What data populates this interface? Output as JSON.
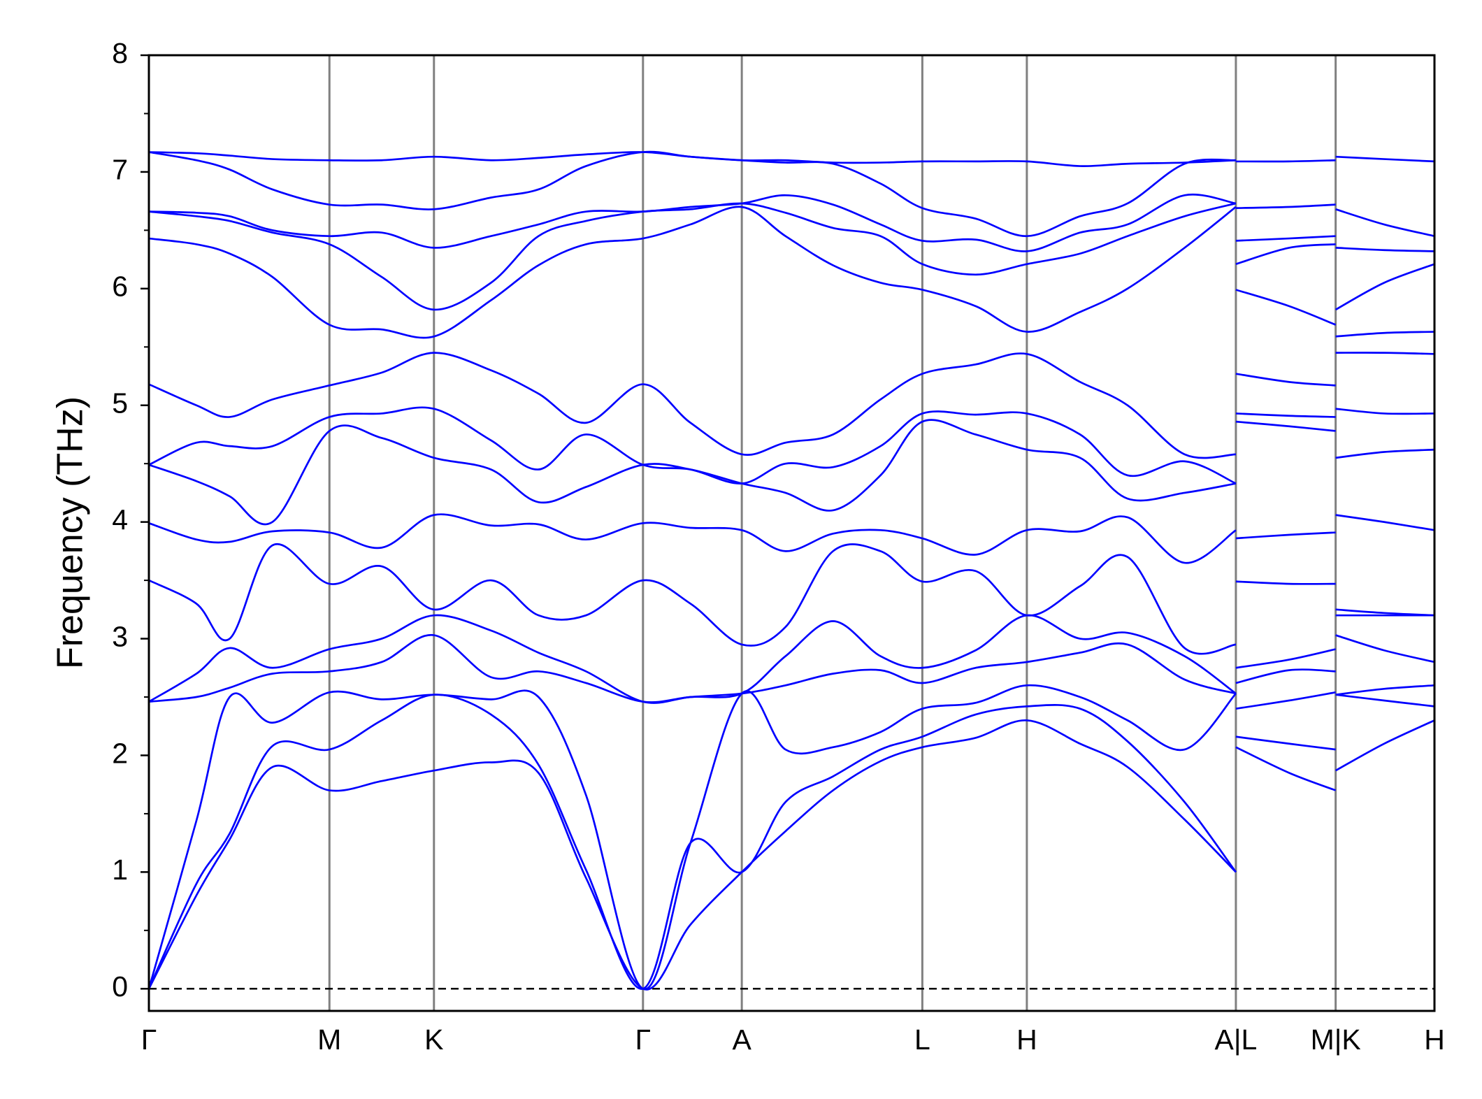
{
  "chart_data": {
    "type": "line",
    "y_label": "Frequency (THz)",
    "x": [
      0,
      0.5,
      0.85,
      1.3,
      1.9,
      2.45,
      3.0,
      3.6,
      4.1,
      4.6,
      5.2,
      5.7,
      6.24,
      6.7,
      7.2,
      7.7,
      8.14,
      8.7,
      9.24,
      9.8,
      10.3,
      10.9,
      11.44,
      11.44,
      11.44,
      12.0,
      12.49,
      12.49,
      12.49,
      13.0,
      13.53
    ],
    "series": [
      {
        "color": "#0000ff",
        "values": [
          0,
          0.8,
          1.28,
          1.9,
          1.7,
          1.78,
          1.87,
          1.94,
          1.85,
          0.95,
          0,
          0.55,
          1.0,
          1.35,
          1.7,
          1.95,
          2.07,
          2.15,
          2.3,
          2.1,
          1.9,
          1.45,
          1.0,
          null,
          2.07,
          1.85,
          1.7,
          null,
          1.87,
          2.1,
          2.3
        ]
      },
      {
        "color": "#0000ff",
        "values": [
          0,
          0.9,
          1.33,
          2.08,
          2.05,
          2.3,
          2.52,
          2.35,
          1.92,
          1.02,
          0,
          1.25,
          1.0,
          1.6,
          1.82,
          2.05,
          2.16,
          2.35,
          2.42,
          2.4,
          2.12,
          1.6,
          1.0,
          null,
          2.16,
          2.1,
          2.05,
          null,
          2.52,
          2.47,
          2.42
        ]
      },
      {
        "color": "#0000ff",
        "values": [
          0,
          1.44,
          2.5,
          2.28,
          2.54,
          2.48,
          2.52,
          2.48,
          2.5,
          1.66,
          0,
          1.25,
          2.53,
          2.05,
          2.07,
          2.2,
          2.4,
          2.45,
          2.6,
          2.5,
          2.3,
          2.05,
          2.53,
          null,
          2.4,
          2.47,
          2.54,
          null,
          2.52,
          2.57,
          2.6
        ]
      },
      {
        "color": "#0000ff",
        "values": [
          2.46,
          2.5,
          2.58,
          2.7,
          2.72,
          2.8,
          3.03,
          2.67,
          2.72,
          2.62,
          2.46,
          2.5,
          2.53,
          2.6,
          2.7,
          2.73,
          2.62,
          2.75,
          2.8,
          2.88,
          2.95,
          2.65,
          2.53,
          null,
          2.62,
          2.73,
          2.72,
          null,
          3.03,
          2.9,
          2.8
        ]
      },
      {
        "color": "#0000ff",
        "values": [
          2.46,
          2.7,
          2.92,
          2.75,
          2.91,
          3.0,
          3.2,
          3.07,
          2.88,
          2.72,
          2.46,
          2.5,
          2.53,
          2.85,
          3.15,
          2.85,
          2.75,
          2.9,
          3.2,
          3.0,
          3.05,
          2.85,
          2.53,
          null,
          2.75,
          2.82,
          2.91,
          null,
          3.2,
          3.2,
          3.2
        ]
      },
      {
        "color": "#0000ff",
        "values": [
          3.5,
          3.3,
          3.0,
          3.8,
          3.47,
          3.62,
          3.25,
          3.5,
          3.2,
          3.2,
          3.5,
          3.3,
          2.95,
          3.1,
          3.75,
          3.75,
          3.49,
          3.58,
          3.2,
          3.45,
          3.7,
          2.92,
          2.95,
          null,
          3.49,
          3.47,
          3.47,
          null,
          3.25,
          3.22,
          3.2
        ]
      },
      {
        "color": "#0000ff",
        "values": [
          3.99,
          3.85,
          3.83,
          3.92,
          3.91,
          3.78,
          4.06,
          3.97,
          3.98,
          3.85,
          3.99,
          3.95,
          3.93,
          3.75,
          3.9,
          3.93,
          3.86,
          3.72,
          3.93,
          3.92,
          4.04,
          3.65,
          3.93,
          null,
          3.86,
          3.89,
          3.91,
          null,
          4.06,
          4.0,
          3.93
        ]
      },
      {
        "color": "#0000ff",
        "values": [
          4.49,
          4.35,
          4.22,
          4.0,
          4.78,
          4.72,
          4.55,
          4.45,
          4.17,
          4.3,
          4.49,
          4.45,
          4.33,
          4.25,
          4.1,
          4.4,
          4.86,
          4.75,
          4.62,
          4.55,
          4.2,
          4.25,
          4.33,
          null,
          4.86,
          4.82,
          4.78,
          null,
          4.55,
          4.6,
          4.62
        ]
      },
      {
        "color": "#0000ff",
        "values": [
          4.49,
          4.68,
          4.65,
          4.65,
          4.9,
          4.93,
          4.97,
          4.7,
          4.45,
          4.75,
          4.49,
          4.45,
          4.33,
          4.5,
          4.47,
          4.65,
          4.93,
          4.92,
          4.93,
          4.75,
          4.4,
          4.52,
          4.33,
          null,
          4.93,
          4.91,
          4.9,
          null,
          4.97,
          4.93,
          4.93
        ]
      },
      {
        "color": "#0000ff",
        "values": [
          5.18,
          5.0,
          4.9,
          5.05,
          5.17,
          5.28,
          5.45,
          5.3,
          5.1,
          4.85,
          5.18,
          4.85,
          4.58,
          4.68,
          4.75,
          5.05,
          5.27,
          5.35,
          5.44,
          5.2,
          5.0,
          4.58,
          4.58,
          null,
          5.27,
          5.2,
          5.17,
          null,
          5.45,
          5.45,
          5.44
        ]
      },
      {
        "color": "#0000ff",
        "values": [
          6.43,
          6.38,
          6.3,
          6.1,
          5.69,
          5.65,
          5.59,
          5.9,
          6.2,
          6.38,
          6.43,
          6.55,
          6.7,
          6.45,
          6.2,
          6.05,
          5.99,
          5.85,
          5.63,
          5.8,
          6.0,
          6.35,
          6.7,
          null,
          5.99,
          5.85,
          5.69,
          null,
          5.59,
          5.62,
          5.63
        ]
      },
      {
        "color": "#0000ff",
        "values": [
          6.66,
          6.62,
          6.58,
          6.48,
          6.38,
          6.1,
          5.82,
          6.05,
          6.45,
          6.58,
          6.66,
          6.68,
          6.73,
          6.65,
          6.52,
          6.45,
          6.21,
          6.12,
          6.21,
          6.3,
          6.45,
          6.62,
          6.73,
          null,
          6.21,
          6.35,
          6.38,
          null,
          5.82,
          6.05,
          6.21
        ]
      },
      {
        "color": "#0000ff",
        "values": [
          6.66,
          6.65,
          6.62,
          6.5,
          6.45,
          6.48,
          6.35,
          6.45,
          6.55,
          6.66,
          6.66,
          6.7,
          6.73,
          6.8,
          6.72,
          6.55,
          6.41,
          6.42,
          6.32,
          6.48,
          6.55,
          6.8,
          6.73,
          null,
          6.41,
          6.43,
          6.45,
          null,
          6.35,
          6.33,
          6.32
        ]
      },
      {
        "color": "#0000ff",
        "values": [
          7.17,
          7.1,
          7.02,
          6.85,
          6.72,
          6.72,
          6.68,
          6.78,
          6.85,
          7.05,
          7.17,
          7.13,
          7.1,
          7.08,
          7.07,
          6.9,
          6.69,
          6.6,
          6.45,
          6.62,
          6.73,
          7.07,
          7.1,
          null,
          6.69,
          6.7,
          6.72,
          null,
          6.68,
          6.55,
          6.45
        ]
      },
      {
        "color": "#0000ff",
        "values": [
          7.17,
          7.16,
          7.14,
          7.11,
          7.1,
          7.1,
          7.13,
          7.1,
          7.12,
          7.15,
          7.17,
          7.13,
          7.1,
          7.1,
          7.08,
          7.08,
          7.09,
          7.09,
          7.09,
          7.05,
          7.07,
          7.08,
          7.1,
          null,
          7.09,
          7.09,
          7.1,
          null,
          7.13,
          7.11,
          7.09
        ]
      }
    ],
    "xlim": [
      0,
      13.53
    ],
    "ylim": [
      -0.19,
      8
    ],
    "xticks": [
      {
        "value": 0,
        "label": "Γ"
      },
      {
        "value": 1.9,
        "label": "M"
      },
      {
        "value": 3.0,
        "label": "K"
      },
      {
        "value": 5.2,
        "label": "Γ"
      },
      {
        "value": 6.24,
        "label": "A"
      },
      {
        "value": 8.14,
        "label": "L"
      },
      {
        "value": 9.24,
        "label": "H"
      },
      {
        "value": 11.44,
        "label": "A|L"
      },
      {
        "value": 12.49,
        "label": "M|K"
      },
      {
        "value": 13.53,
        "label": "H"
      }
    ],
    "yticks": [
      0,
      1,
      2,
      3,
      4,
      5,
      6,
      7,
      8
    ],
    "xgrid": true,
    "xgrid_color": "#808080",
    "zero_line": true
  }
}
